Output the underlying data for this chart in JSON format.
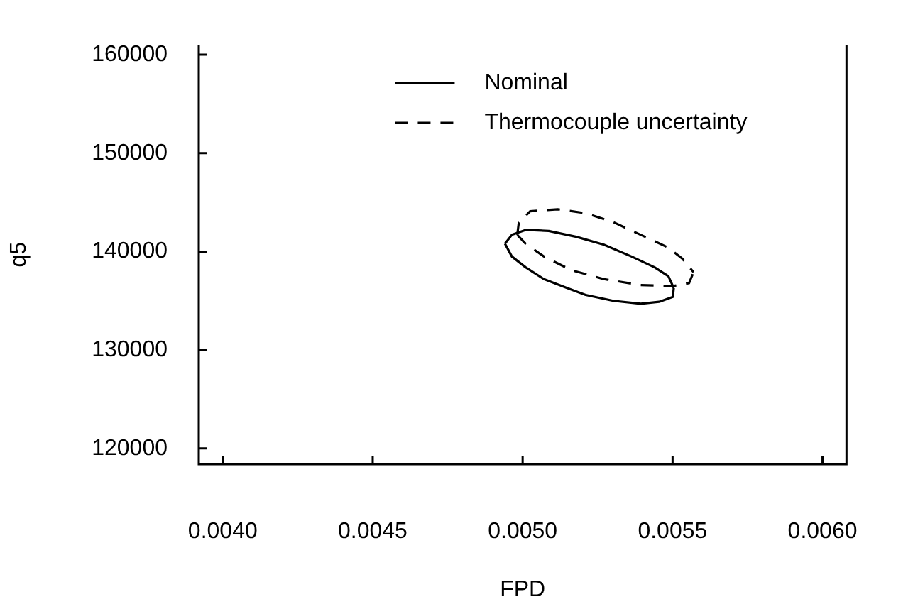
{
  "chart_data": {
    "type": "line",
    "xlabel": "FPD",
    "ylabel": "q5",
    "xlim": [
      0.00392,
      0.00608
    ],
    "xticks": [
      {
        "value": 0.004,
        "label": "0.0040"
      },
      {
        "value": 0.0045,
        "label": "0.0045"
      },
      {
        "value": 0.005,
        "label": "0.0050"
      },
      {
        "value": 0.0055,
        "label": "0.0055"
      },
      {
        "value": 0.006,
        "label": "0.0060"
      }
    ],
    "ylim": [
      118400,
      161000
    ],
    "yticks": [
      120000,
      130000,
      140000,
      150000,
      160000
    ],
    "grid": false,
    "legend": "top",
    "marker": "none",
    "series": [
      {
        "name": "Nominal",
        "color": "#000000",
        "line_style": "solid",
        "x": [
          0.004941,
          0.004964,
          0.00501,
          0.005087,
          0.005179,
          0.005271,
          0.005363,
          0.00544,
          0.005486,
          0.005504
        ],
        "values": [
          140800,
          141700,
          142200,
          142100,
          141500,
          140700,
          139500,
          138400,
          137500,
          136300
        ]
      },
      {
        "color": "#000000",
        "line_style": "solid",
        "x": [
          0.004941,
          0.004964,
          0.00501,
          0.005071,
          0.005148,
          0.00521,
          0.005302,
          0.005394,
          0.005455,
          0.005501,
          0.005504
        ],
        "values": [
          140800,
          139500,
          138400,
          137200,
          136300,
          135600,
          135000,
          134700,
          134900,
          135400,
          136300
        ]
      },
      {
        "name": "Thermocouple uncertainty",
        "color": "#000000",
        "line_style": "dashed",
        "x": [
          0.004982,
          0.004987,
          0.005025,
          0.005117,
          0.00521,
          0.005302,
          0.005394,
          0.005486,
          0.005532,
          0.00557
        ],
        "values": [
          141700,
          142900,
          144100,
          144300,
          143900,
          143000,
          141700,
          140400,
          139300,
          137900
        ]
      },
      {
        "color": "#000000",
        "line_style": "dashed",
        "x": [
          0.004982,
          0.00501,
          0.005071,
          0.005163,
          0.005271,
          0.005394,
          0.005501,
          0.005555,
          0.00557
        ],
        "values": [
          141700,
          140800,
          139500,
          138100,
          137200,
          136600,
          136500,
          136800,
          137900
        ]
      }
    ]
  }
}
